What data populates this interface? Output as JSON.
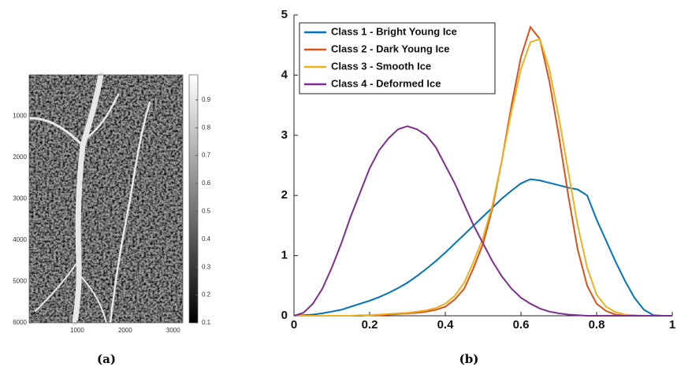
{
  "chart_data": [
    {
      "type": "image",
      "xlim": [
        0,
        3200
      ],
      "ylim": [
        0,
        6000
      ],
      "yreverse": true,
      "xticks": [
        1000,
        2000,
        3000
      ],
      "yticks": [
        1000,
        2000,
        3000,
        4000,
        5000,
        6000
      ],
      "clim": [
        0.1,
        0.99
      ],
      "cticks": [
        0.1,
        0.2,
        0.3,
        0.4,
        0.5,
        0.6,
        0.7,
        0.8,
        0.9
      ],
      "caption": "(a)"
    },
    {
      "type": "line",
      "caption": "(b)",
      "legend": "upper left",
      "xlim": [
        0,
        1
      ],
      "ylim": [
        0,
        5
      ],
      "xticks": [
        0,
        0.2,
        0.4,
        0.6,
        0.8,
        1
      ],
      "yticks": [
        0,
        1,
        2,
        3,
        4,
        5
      ],
      "x": [
        0,
        0.025,
        0.05,
        0.075,
        0.1,
        0.125,
        0.15,
        0.175,
        0.2,
        0.225,
        0.25,
        0.275,
        0.3,
        0.325,
        0.35,
        0.375,
        0.4,
        0.425,
        0.45,
        0.475,
        0.5,
        0.525,
        0.55,
        0.575,
        0.6,
        0.625,
        0.65,
        0.675,
        0.7,
        0.725,
        0.75,
        0.775,
        0.8,
        0.825,
        0.85,
        0.875,
        0.9,
        0.925,
        0.95,
        0.975,
        1
      ],
      "series": [
        {
          "name": "Class 1 - Bright Young Ice",
          "color": "#0072bd",
          "values": [
            0,
            0.01,
            0.02,
            0.04,
            0.07,
            0.1,
            0.15,
            0.2,
            0.25,
            0.31,
            0.38,
            0.46,
            0.55,
            0.66,
            0.78,
            0.91,
            1.05,
            1.2,
            1.35,
            1.5,
            1.65,
            1.8,
            1.95,
            2.08,
            2.2,
            2.27,
            2.25,
            2.21,
            2.17,
            2.13,
            2.1,
            2.0,
            1.6,
            1.25,
            0.9,
            0.58,
            0.3,
            0.1,
            0.01,
            0,
            0
          ]
        },
        {
          "name": "Class 2 - Dark Young Ice",
          "color": "#d95319",
          "values": [
            0,
            0,
            0,
            0,
            0,
            0,
            0,
            0,
            0.01,
            0.01,
            0.02,
            0.03,
            0.04,
            0.05,
            0.07,
            0.1,
            0.15,
            0.27,
            0.45,
            0.8,
            1.2,
            1.8,
            2.6,
            3.5,
            4.3,
            4.8,
            4.6,
            3.9,
            3.0,
            2.0,
            1.1,
            0.5,
            0.2,
            0.08,
            0.02,
            0,
            0,
            0,
            0,
            0,
            0
          ]
        },
        {
          "name": "Class 3 - Smooth Ice",
          "color": "#edb120",
          "values": [
            0,
            0,
            0,
            0,
            0,
            0,
            0,
            0.01,
            0.01,
            0.02,
            0.03,
            0.04,
            0.05,
            0.07,
            0.09,
            0.13,
            0.2,
            0.33,
            0.55,
            0.9,
            1.3,
            1.85,
            2.6,
            3.4,
            4.1,
            4.55,
            4.6,
            4.1,
            3.3,
            2.4,
            1.5,
            0.8,
            0.35,
            0.15,
            0.06,
            0.02,
            0.01,
            0,
            0,
            0,
            0
          ]
        },
        {
          "name": "Class 4 - Deformed Ice",
          "color": "#7e2f8e",
          "values": [
            0,
            0.05,
            0.2,
            0.45,
            0.8,
            1.2,
            1.65,
            2.05,
            2.45,
            2.75,
            2.95,
            3.1,
            3.15,
            3.1,
            3.0,
            2.8,
            2.5,
            2.2,
            1.85,
            1.5,
            1.2,
            0.9,
            0.65,
            0.45,
            0.3,
            0.2,
            0.12,
            0.07,
            0.04,
            0.02,
            0.01,
            0,
            0,
            0,
            0,
            0,
            0,
            0,
            0,
            0,
            0
          ]
        }
      ]
    }
  ]
}
